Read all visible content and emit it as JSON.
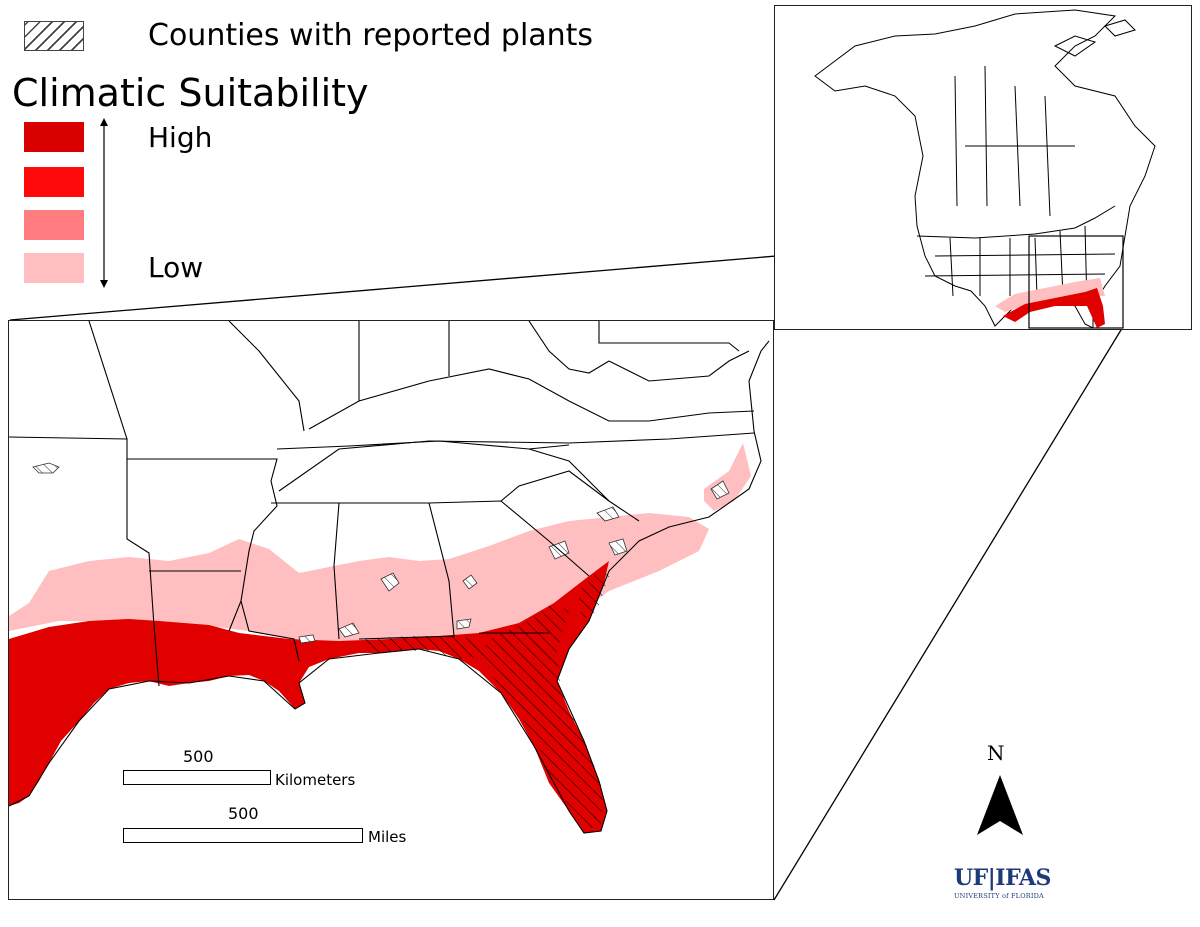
{
  "legend": {
    "hatch_label": "Counties with reported plants",
    "title": "Climatic Suitability",
    "classes": [
      {
        "color": "#d90000"
      },
      {
        "color": "#ff0a0a"
      },
      {
        "color": "#ff7c80"
      },
      {
        "color": "#ffbfc1"
      }
    ],
    "high_label": "High",
    "low_label": "Low"
  },
  "scale_bars": [
    {
      "value": "500",
      "unit": "Kilometers"
    },
    {
      "value": "500",
      "unit": "Miles"
    }
  ],
  "north_arrow": {
    "label": "N"
  },
  "logo": {
    "main": "UF|IFAS",
    "sub": "UNIVERSITY of FLORIDA"
  },
  "colors": {
    "high": "#d90000",
    "low": "#ffbfc1",
    "boundary": "#000000",
    "logo": "#1f3a7a"
  }
}
